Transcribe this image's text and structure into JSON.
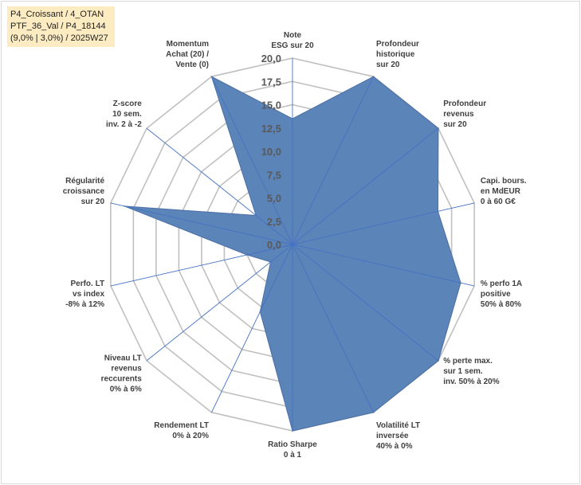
{
  "info_box": {
    "line1": "P4_Croissant / 4_OTAN",
    "line2": "PTF_36_Val / P4_18144",
    "line3": "(9,0% | 3,0%) / 2025W27"
  },
  "colors": {
    "fill": "#5b84b8",
    "grid": "#c0c0c0",
    "spoke": "#4472c4"
  },
  "chart_data": {
    "type": "radar",
    "title": "",
    "rmin": 0,
    "rmax": 20,
    "ticks": [
      "0,0",
      "2,5",
      "5,0",
      "7,5",
      "10,0",
      "12,5",
      "15,0",
      "17,5",
      "20,0"
    ],
    "axes": [
      {
        "label": [
          "Note",
          "ESG sur 20"
        ]
      },
      {
        "label": [
          "Profondeur",
          "historique",
          "sur 20"
        ]
      },
      {
        "label": [
          "Profondeur",
          "revenus",
          "sur 20"
        ]
      },
      {
        "label": [
          "Capi. bours.",
          "en MdEUR",
          "0 à 60 G€"
        ]
      },
      {
        "label": [
          "% perfo 1A",
          "positive",
          "50% à 80%"
        ]
      },
      {
        "label": [
          "% perte max.",
          "sur 1 sem.",
          "inv. 50% à 20%"
        ]
      },
      {
        "label": [
          "Volatilité LT",
          "inversée",
          "40% à 0%"
        ]
      },
      {
        "label": [
          "Ratio Sharpe",
          "0 à 1"
        ]
      },
      {
        "label": [
          "Rendement LT",
          "0% à 20%"
        ]
      },
      {
        "label": [
          "Niveau LT",
          "revenus",
          "reccurents",
          "0% à 6%"
        ]
      },
      {
        "label": [
          "Perfo. LT",
          "vs index",
          "-8% à 12%"
        ]
      },
      {
        "label": [
          "Régularité",
          "croissance",
          "sur 20"
        ]
      },
      {
        "label": [
          "Z-score",
          "10 sem.",
          "inv. 2 à -2"
        ]
      },
      {
        "label": [
          "Momentum",
          "Achat (20) /",
          "Vente (0)"
        ]
      }
    ],
    "series": [
      {
        "values": [
          13.5,
          20,
          20,
          16,
          18.5,
          20,
          20,
          20,
          8,
          3,
          5,
          18.5,
          5,
          20
        ]
      }
    ]
  }
}
